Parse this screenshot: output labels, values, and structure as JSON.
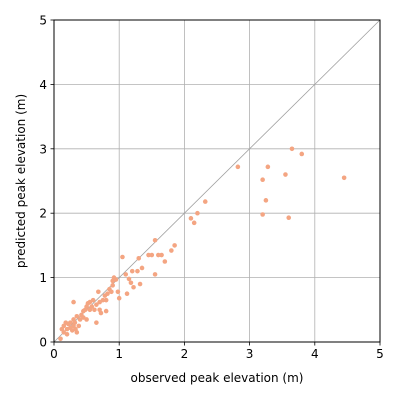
{
  "chart_data": {
    "type": "scatter",
    "xlabel": "observed peak elevation (m)",
    "ylabel": "predicted peak elevation (m)",
    "xlim": [
      0,
      5
    ],
    "ylim": [
      0,
      5
    ],
    "xticks": [
      "0",
      "1",
      "2",
      "3",
      "4",
      "5"
    ],
    "yticks": [
      "0",
      "1",
      "2",
      "3",
      "4",
      "5"
    ],
    "grid": true,
    "reference_line": "y = x",
    "point_color": "#f4a582",
    "reference_line_color": "#a0a0a0",
    "grid_color": "#b0b0b0",
    "series": [
      {
        "points": [
          [
            0.1,
            0.05
          ],
          [
            0.12,
            0.2
          ],
          [
            0.15,
            0.25
          ],
          [
            0.15,
            0.15
          ],
          [
            0.18,
            0.3
          ],
          [
            0.2,
            0.2
          ],
          [
            0.2,
            0.12
          ],
          [
            0.22,
            0.28
          ],
          [
            0.25,
            0.22
          ],
          [
            0.25,
            0.3
          ],
          [
            0.28,
            0.18
          ],
          [
            0.3,
            0.35
          ],
          [
            0.3,
            0.25
          ],
          [
            0.3,
            0.62
          ],
          [
            0.32,
            0.3
          ],
          [
            0.33,
            0.2
          ],
          [
            0.35,
            0.4
          ],
          [
            0.35,
            0.15
          ],
          [
            0.38,
            0.25
          ],
          [
            0.4,
            0.35
          ],
          [
            0.42,
            0.42
          ],
          [
            0.45,
            0.48
          ],
          [
            0.45,
            0.38
          ],
          [
            0.48,
            0.5
          ],
          [
            0.5,
            0.55
          ],
          [
            0.5,
            0.35
          ],
          [
            0.52,
            0.6
          ],
          [
            0.55,
            0.5
          ],
          [
            0.55,
            0.62
          ],
          [
            0.58,
            0.55
          ],
          [
            0.6,
            0.65
          ],
          [
            0.62,
            0.5
          ],
          [
            0.65,
            0.3
          ],
          [
            0.65,
            0.58
          ],
          [
            0.68,
            0.78
          ],
          [
            0.7,
            0.62
          ],
          [
            0.7,
            0.5
          ],
          [
            0.72,
            0.45
          ],
          [
            0.75,
            0.65
          ],
          [
            0.78,
            0.72
          ],
          [
            0.8,
            0.65
          ],
          [
            0.8,
            0.48
          ],
          [
            0.82,
            0.75
          ],
          [
            0.85,
            0.82
          ],
          [
            0.88,
            0.78
          ],
          [
            0.9,
            0.95
          ],
          [
            0.9,
            0.88
          ],
          [
            0.92,
            1.0
          ],
          [
            0.95,
            0.97
          ],
          [
            0.98,
            0.78
          ],
          [
            1.0,
            0.68
          ],
          [
            1.05,
            1.32
          ],
          [
            1.1,
            1.05
          ],
          [
            1.12,
            0.75
          ],
          [
            1.15,
            0.98
          ],
          [
            1.18,
            0.92
          ],
          [
            1.2,
            1.1
          ],
          [
            1.22,
            0.85
          ],
          [
            1.28,
            1.1
          ],
          [
            1.3,
            1.3
          ],
          [
            1.32,
            0.9
          ],
          [
            1.35,
            1.15
          ],
          [
            1.45,
            1.35
          ],
          [
            1.5,
            1.35
          ],
          [
            1.55,
            1.58
          ],
          [
            1.55,
            1.05
          ],
          [
            1.6,
            1.35
          ],
          [
            1.65,
            1.35
          ],
          [
            1.7,
            1.25
          ],
          [
            1.8,
            1.42
          ],
          [
            1.85,
            1.5
          ],
          [
            2.1,
            1.92
          ],
          [
            2.15,
            1.85
          ],
          [
            2.2,
            2.0
          ],
          [
            2.32,
            2.18
          ],
          [
            2.82,
            2.72
          ],
          [
            3.2,
            2.52
          ],
          [
            3.2,
            1.98
          ],
          [
            3.25,
            2.2
          ],
          [
            3.28,
            2.72
          ],
          [
            3.55,
            2.6
          ],
          [
            3.6,
            1.93
          ],
          [
            3.65,
            3.0
          ],
          [
            3.8,
            2.92
          ],
          [
            4.45,
            2.55
          ]
        ]
      }
    ]
  }
}
